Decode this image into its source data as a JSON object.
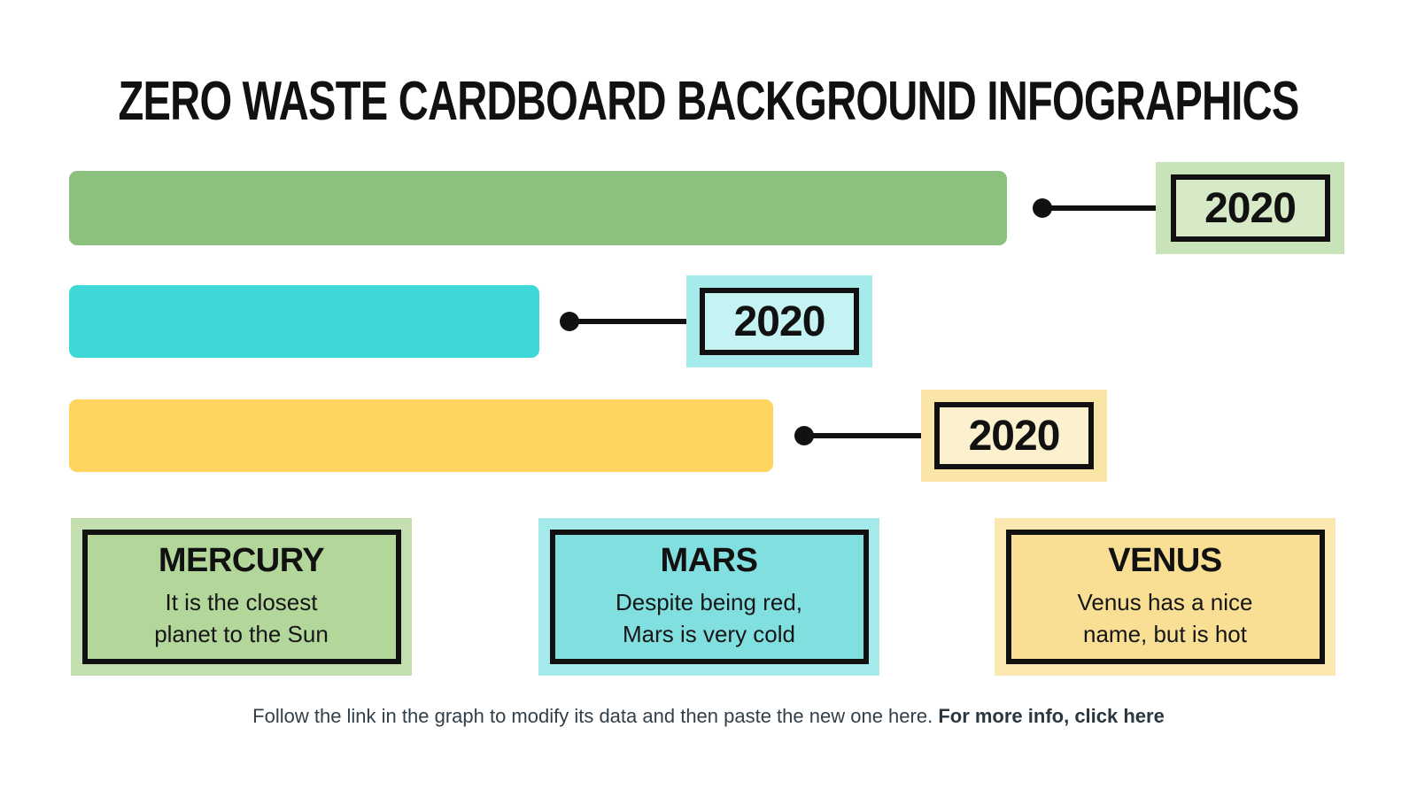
{
  "title": "ZERO WASTE CARDBOARD BACKGROUND INFOGRAPHICS",
  "chart_data": {
    "type": "bar",
    "orientation": "horizontal",
    "title": "ZERO WASTE CARDBOARD BACKGROUND INFOGRAPHICS",
    "categories": [
      "Mercury",
      "Mars",
      "Venus"
    ],
    "series": [
      {
        "name": "2020",
        "values": [
          100,
          50,
          75
        ]
      }
    ],
    "values_note": "no numeric axis shown; values are bar lengths as % of the longest (Mercury) bar",
    "value_labels": [
      "2020",
      "2020",
      "2020"
    ],
    "bar_colors": [
      "#8CC17D",
      "#3ED8D8",
      "#FCD45E"
    ],
    "xlabel": "",
    "ylabel": "",
    "axis_visible": false,
    "grid": false,
    "legend_position": "none"
  },
  "rows": [
    {
      "planet": "Mercury",
      "year_label": "2020",
      "bar_color": "#8CC17D",
      "tag_halo_color": "#C8E3B8",
      "tag_fill_color": "#D6EAC8"
    },
    {
      "planet": "Mars",
      "year_label": "2020",
      "bar_color": "#3ED8D8",
      "tag_halo_color": "#A5EBEB",
      "tag_fill_color": "#C5F2F2"
    },
    {
      "planet": "Venus",
      "year_label": "2020",
      "bar_color": "#FCD45E",
      "tag_halo_color": "#FAE5A6",
      "tag_fill_color": "#FCF1CE"
    }
  ],
  "cards": [
    {
      "title": "MERCURY",
      "body": "It is the closest\nplanet to the Sun",
      "halo_color": "#C3DFAF",
      "fill_color": "#B3D79B"
    },
    {
      "title": "MARS",
      "body": "Despite being red,\nMars is very cold",
      "halo_color": "#A5EAEA",
      "fill_color": "#82DFE0"
    },
    {
      "title": "VENUS",
      "body": "Venus has a nice\nname, but is hot",
      "halo_color": "#FAE8B0",
      "fill_color": "#F8DF93"
    }
  ],
  "footer": {
    "text": "Follow the link in the graph to modify its data and then paste the new one here. ",
    "link_text": "For more info, click here"
  },
  "colors": {
    "background": "#FFFFFF",
    "text": "#111111",
    "footer_text": "#333F48",
    "connector": "#111111"
  }
}
